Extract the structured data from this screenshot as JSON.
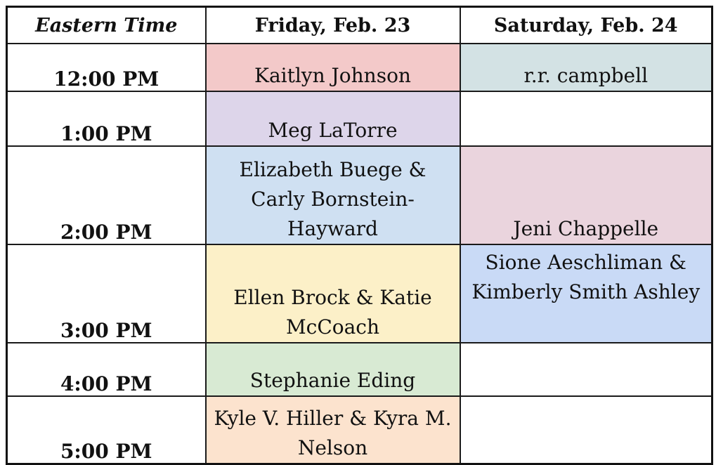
{
  "header": {
    "time_col": "Eastern Time",
    "day1": "Friday, Feb. 23",
    "day2": "Saturday, Feb. 24"
  },
  "rows": [
    {
      "time": "12:00 PM",
      "fri": "Kaitlyn Johnson",
      "sat": "r.r. campbell",
      "fri_color": "#f3c9c9",
      "sat_color": "#d3e2e4"
    },
    {
      "time": "1:00 PM",
      "fri": "Meg LaTorre",
      "sat": "",
      "fri_color": "#ddd5ea",
      "sat_color": "#ffffff"
    },
    {
      "time": "2:00 PM",
      "fri": "Elizabeth Buege & Carly Bornstein-Hayward",
      "sat": "Jeni Chappelle",
      "fri_color": "#cfe0f2",
      "sat_color": "#ead4dd"
    },
    {
      "time": "3:00 PM",
      "fri": "Ellen Brock & Katie McCoach",
      "sat": "Sione Aeschliman & Kimberly Smith Ashley",
      "fri_color": "#fcf0c8",
      "sat_color": "#c9daf6"
    },
    {
      "time": "4:00 PM",
      "fri": "Stephanie Eding",
      "sat": "",
      "fri_color": "#d8ead3",
      "sat_color": "#ffffff"
    },
    {
      "time": "5:00 PM",
      "fri": "Kyle V. Hiller & Kyra M. Nelson",
      "sat": "",
      "fri_color": "#fce3ce",
      "sat_color": "#ffffff"
    }
  ]
}
